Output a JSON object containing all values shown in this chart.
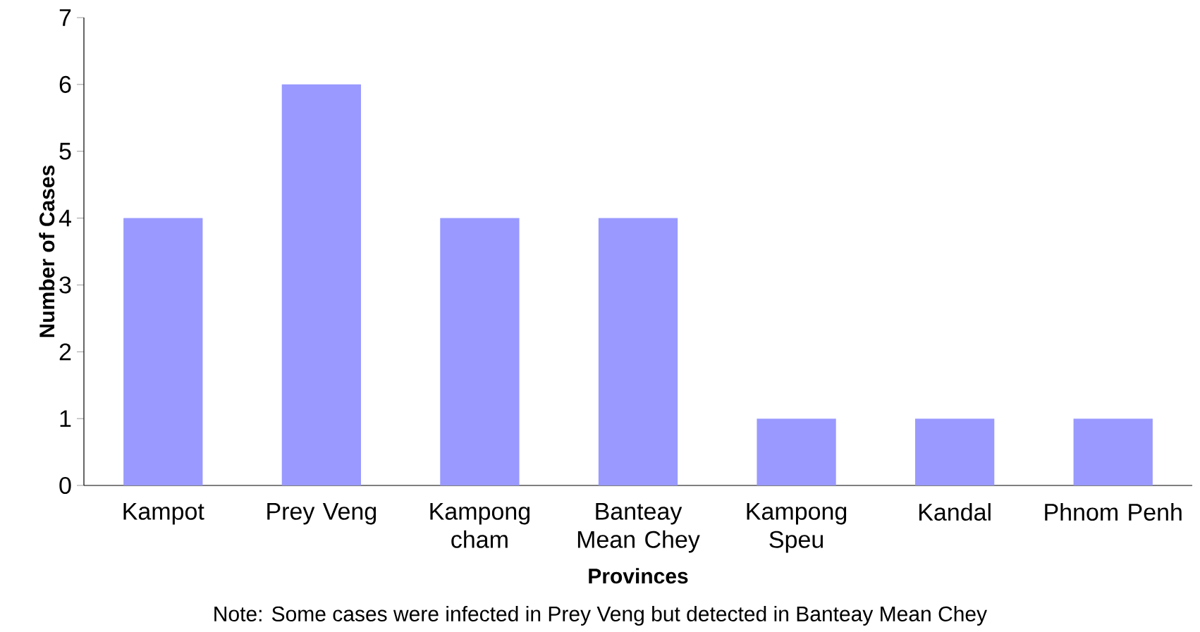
{
  "chart_data": {
    "type": "bar",
    "xlabel": "Provinces",
    "ylabel": "Number of Cases",
    "categories": [
      "Kampot",
      "Prey Veng",
      "Kampong cham",
      "Banteay Mean Chey",
      "Kampong Speu",
      "Kandal",
      "Phnom Penh"
    ],
    "values": [
      4,
      6,
      4,
      4,
      1,
      1,
      1
    ],
    "color": "#9999ff",
    "ylim": [
      0,
      7
    ],
    "yticks": [
      0,
      1,
      2,
      3,
      4,
      5,
      6,
      7
    ],
    "grid": false,
    "annotations": [
      "Note: Some cases were infected in Prey Veng but detected in Banteay Mean Chey"
    ]
  }
}
